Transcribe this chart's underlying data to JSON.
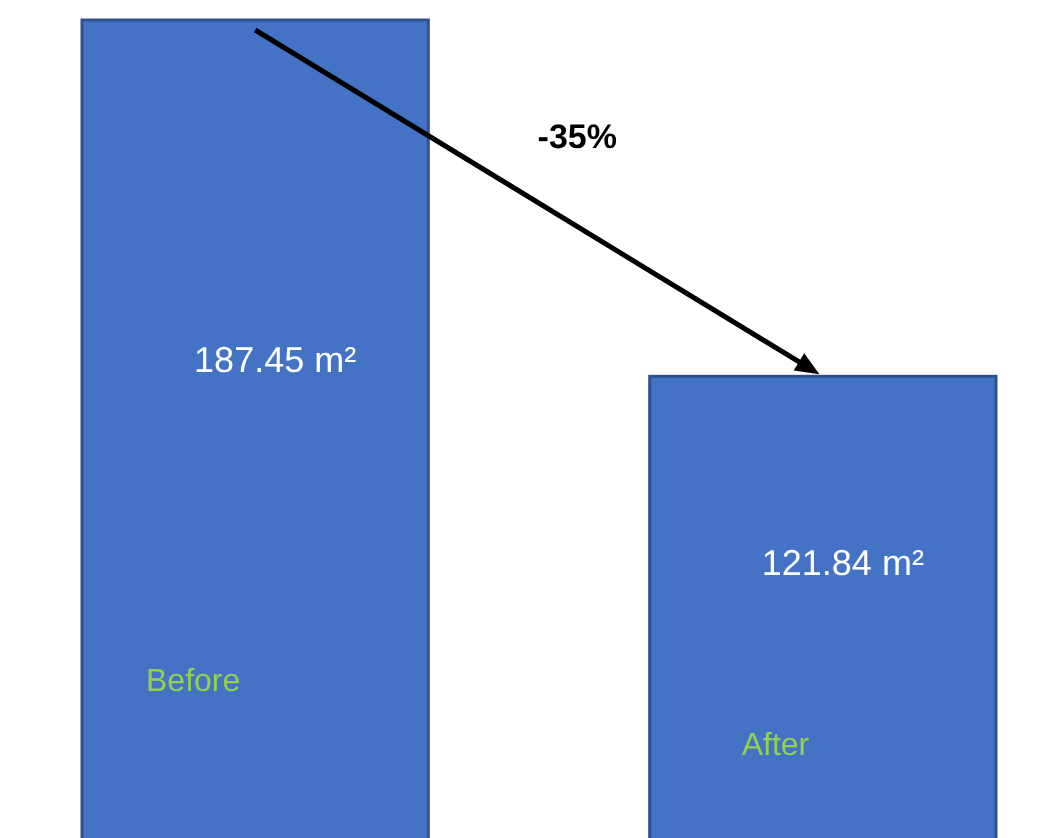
{
  "chart_data": {
    "type": "bar",
    "categories": [
      "Before",
      "After"
    ],
    "values": [
      187.45,
      121.84
    ],
    "color": "#4472c4",
    "value_labels": [
      "187.45 m²",
      "121.84 m²"
    ],
    "annotations": [
      "-35%"
    ]
  }
}
